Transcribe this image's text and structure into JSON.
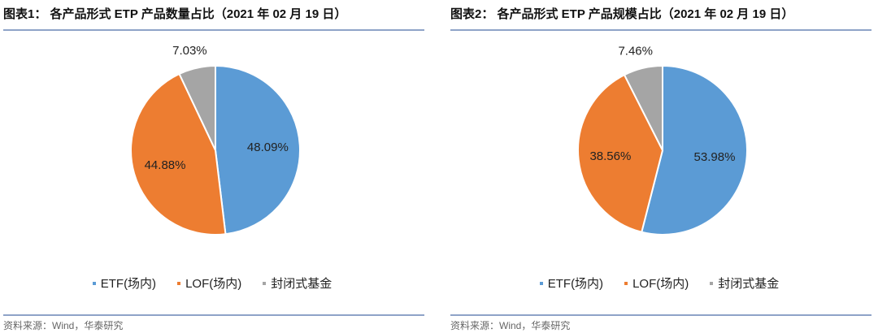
{
  "chart_data": [
    {
      "type": "pie",
      "title": "图表1： 各产品形式 ETP 产品数量占比（2021 年 02 月 19 日）",
      "categories": [
        "ETF(场内)",
        "LOF(场内)",
        "封闭式基金"
      ],
      "values": [
        48.09,
        44.88,
        7.03
      ],
      "labels": [
        "48.09%",
        "44.88%",
        "7.03%"
      ],
      "colors": [
        "#5b9bd5",
        "#ed7d31",
        "#a5a5a5"
      ],
      "legend": "bottom",
      "source": "资料来源：Wind，华泰研究"
    },
    {
      "type": "pie",
      "title": "图表2： 各产品形式 ETP 产品规模占比（2021 年 02 月 19 日）",
      "categories": [
        "ETF(场内)",
        "LOF(场内)",
        "封闭式基金"
      ],
      "values": [
        53.98,
        38.56,
        7.46
      ],
      "labels": [
        "53.98%",
        "38.56%",
        "7.46%"
      ],
      "colors": [
        "#5b9bd5",
        "#ed7d31",
        "#a5a5a5"
      ],
      "legend": "bottom",
      "source": "资料来源：Wind，华泰研究"
    }
  ]
}
